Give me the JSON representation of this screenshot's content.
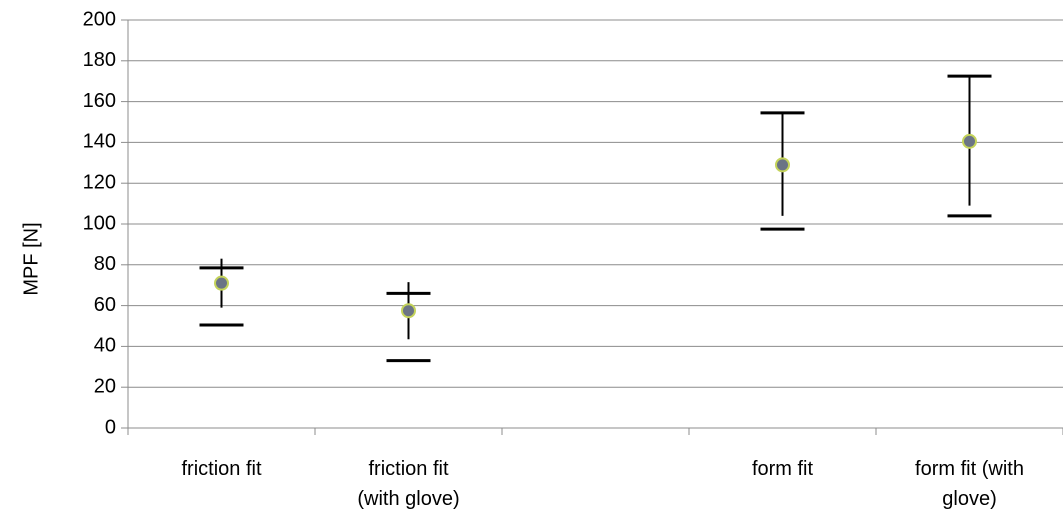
{
  "chart_data": {
    "type": "scatter",
    "title": "",
    "xlabel": "",
    "ylabel": "MPF [N]",
    "ylim": [
      0,
      200
    ],
    "yticks": [
      0,
      20,
      40,
      60,
      80,
      100,
      120,
      140,
      160,
      180,
      200
    ],
    "grid": true,
    "legend": "none",
    "categories": [
      {
        "label": [
          "friction fit"
        ]
      },
      {
        "label": [
          "friction fit",
          "(with glove)"
        ]
      },
      {
        "label": [
          ""
        ]
      },
      {
        "label": [
          "form fit"
        ]
      },
      {
        "label": [
          "form fit (with",
          "glove)"
        ]
      }
    ],
    "points": [
      {
        "category_index": 0,
        "mean": 71,
        "err_low": 59,
        "err_high": 83,
        "range_low": 50.5,
        "range_high": 78.5
      },
      {
        "category_index": 1,
        "mean": 57.5,
        "err_low": 43.5,
        "err_high": 71.5,
        "range_low": 33,
        "range_high": 66
      },
      {
        "category_index": 3,
        "mean": 129,
        "err_low": 104,
        "err_high": 154.5,
        "range_low": 97.5,
        "range_high": 154.5
      },
      {
        "category_index": 4,
        "mean": 140.5,
        "err_low": 109,
        "err_high": 172.5,
        "range_low": 104,
        "range_high": 172.5
      }
    ],
    "colors": {
      "marker_fill": "#6b7485",
      "marker_stroke": "#c4d35a",
      "error_bar": "#000000",
      "grid": "#8c8c8c",
      "axis": "#8c8c8c"
    }
  }
}
